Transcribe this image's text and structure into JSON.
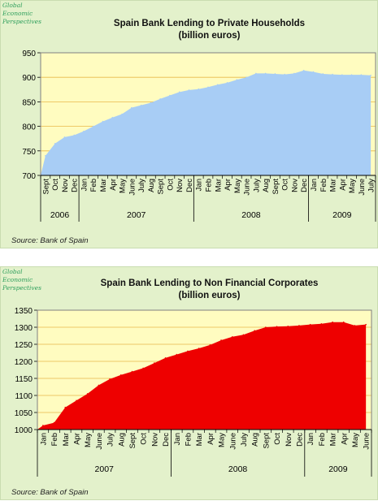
{
  "chart_data": [
    {
      "type": "area",
      "brand": "Global Economic Perspectives",
      "title": "Spain Bank Lending to Private Households",
      "subtitle": "(billion euros)",
      "source": "Source: Bank of Spain",
      "ylim": [
        700,
        950
      ],
      "yticks": [
        700,
        750,
        800,
        850,
        900,
        950
      ],
      "grid": true,
      "fill_color": "#a8cdf5",
      "plot_bg": "#fffcc0",
      "months": [
        "Sept",
        "Oct",
        "Nov",
        "Dec",
        "Jan",
        "Feb",
        "Mar",
        "Apr",
        "May",
        "June",
        "July",
        "Aug",
        "Sept",
        "Oct",
        "Nov",
        "Dec",
        "Jan",
        "Feb",
        "Mar",
        "Apr",
        "May",
        "June",
        "July",
        "Aug",
        "Sept",
        "Oct",
        "Nov",
        "Dec",
        "Jan",
        "Feb",
        "Mar",
        "Apr",
        "May",
        "June",
        "July"
      ],
      "years": [
        {
          "label": "2006",
          "count": 4
        },
        {
          "label": "2007",
          "count": 12
        },
        {
          "label": "2008",
          "count": 12
        },
        {
          "label": "2009",
          "count": 7
        }
      ],
      "values": [
        740,
        765,
        778,
        782,
        790,
        800,
        810,
        818,
        825,
        838,
        843,
        848,
        856,
        863,
        870,
        874,
        876,
        880,
        885,
        889,
        895,
        900,
        908,
        908,
        907,
        906,
        908,
        914,
        911,
        907,
        906,
        905,
        905,
        905,
        904
      ]
    },
    {
      "type": "area",
      "brand": "Global Economic Perspectives",
      "title": "Spain Bank Lending to Non Financial Corporates",
      "subtitle": "(billion euros)",
      "source": "Source: Bank of Spain",
      "ylim": [
        1000,
        1350
      ],
      "yticks": [
        1000,
        1050,
        1100,
        1150,
        1200,
        1250,
        1300,
        1350
      ],
      "grid": true,
      "fill_color": "#ee0000",
      "plot_bg": "#fffcc0",
      "months": [
        "Jan",
        "Feb",
        "Mar",
        "Apr",
        "May",
        "June",
        "July",
        "Aug",
        "Sept",
        "Oct",
        "Nov",
        "Dec",
        "Jan",
        "Feb",
        "Mar",
        "Apr",
        "May",
        "June",
        "July",
        "Aug",
        "Sept",
        "Oct",
        "Nov",
        "Dec",
        "Jan",
        "Feb",
        "Mar",
        "Apr",
        "May",
        "June"
      ],
      "years": [
        {
          "label": "2007",
          "count": 12
        },
        {
          "label": "2008",
          "count": 12
        },
        {
          "label": "2009",
          "count": 6
        }
      ],
      "values": [
        1012,
        1020,
        1065,
        1085,
        1105,
        1130,
        1148,
        1160,
        1170,
        1180,
        1195,
        1210,
        1220,
        1230,
        1238,
        1248,
        1262,
        1272,
        1278,
        1290,
        1300,
        1302,
        1303,
        1305,
        1308,
        1310,
        1315,
        1315,
        1305,
        1308
      ]
    }
  ]
}
